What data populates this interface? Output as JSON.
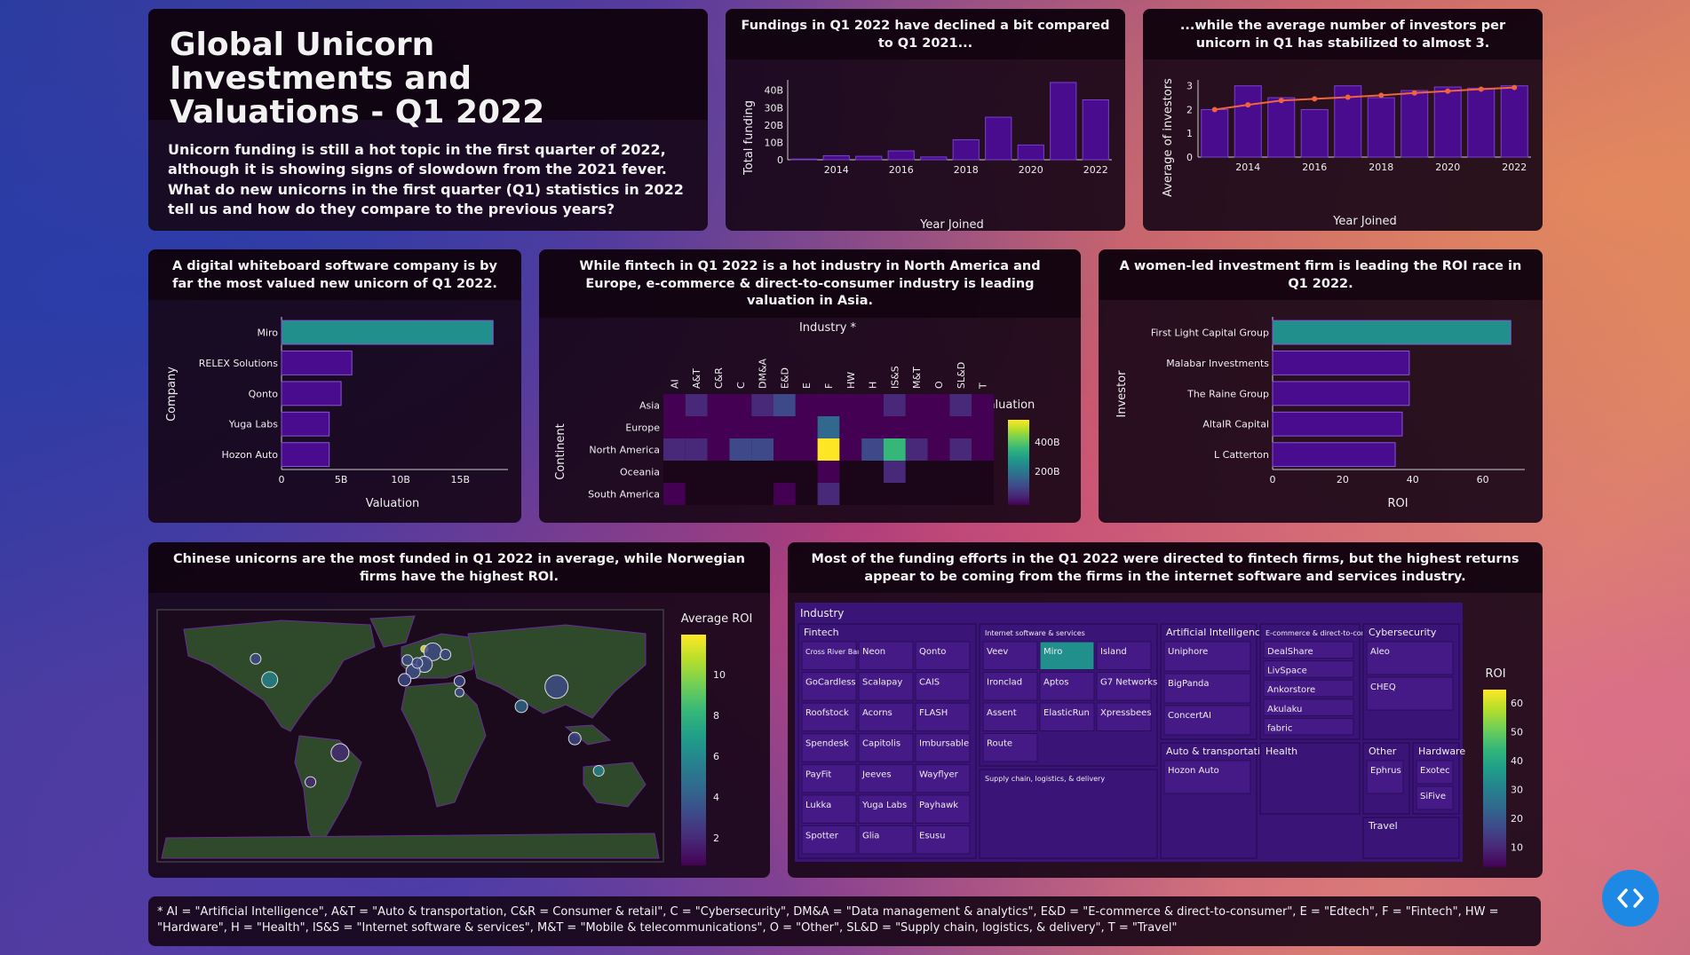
{
  "header": {
    "title": "Global Unicorn Investments and Valuations - Q1 2022",
    "intro": "Unicorn funding is still a hot topic in the first quarter of 2022, although it is showing signs of slowdown from the 2021 fever. What do new unicorns in the first quarter (Q1) statistics in 2022 tell us and how do they compare to the previous years?"
  },
  "cards": {
    "funding_title": "Fundings in Q1 2022 have declined a bit compared to Q1 2021...",
    "investors_title": "...while the average number of investors per unicorn in Q1 has stabilized to almost 3.",
    "company_title": "A digital whiteboard software company is by far the most valued new unicorn of Q1 2022.",
    "heatmap_title": "While fintech in Q1 2022 is a hot industry in North America and Europe, e-commerce & direct-to-consumer industry is leading valuation in Asia.",
    "roi_title": "A women-led investment firm is leading the ROI race in Q1 2022.",
    "map_title": "Chinese unicorns are the most funded in Q1 2022 in average, while Norwegian firms have the highest ROI.",
    "treemap_title": "Most of the funding efforts in the Q1 2022 were directed to fintech firms, but the highest returns appear to be coming from the firms in the internet software and services industry."
  },
  "footnote": "* AI = \"Artificial Intelligence\", A&T = \"Auto & transportation, C&R = Consumer & retail\", C = \"Cybersecurity\", DM&A = \"Data management & analytics\", E&D = \"E-commerce & direct-to-consumer\", E = \"Edtech\", F = \"Fintech\", HW = \"Hardware\", H = \"Health\", IS&S = \"Internet software & services\", M&T = \"Mobile & telecommunications\", O = \"Other\", SL&D = \"Supply chain, logistics, & delivery\", T = \"Travel\"",
  "colors": {
    "bar": "#4a0c8f",
    "highlight": "#21908d",
    "line": "#f0643c",
    "card": "#1a0618"
  },
  "chart_data": [
    {
      "id": "funding",
      "type": "bar",
      "title": "Fundings in Q1 2022 have declined a bit compared to Q1 2021...",
      "xlabel": "Year Joined",
      "ylabel": "Total funding",
      "categories": [
        2013,
        2014,
        2015,
        2016,
        2017,
        2018,
        2019,
        2020,
        2021,
        2022
      ],
      "values": [
        0.4,
        2.3,
        2.0,
        5.1,
        1.6,
        11.5,
        24.5,
        8.5,
        44.5,
        34.5
      ],
      "x_ticks": [
        "2014",
        "2016",
        "2018",
        "2020",
        "2022"
      ],
      "y_ticks": [
        "0",
        "10B",
        "20B",
        "30B",
        "40B"
      ],
      "ylim": [
        0,
        46
      ]
    },
    {
      "id": "investors",
      "type": "bar+line",
      "title": "...while the average number of investors per unicorn in Q1 has stabilized to almost 3.",
      "xlabel": "Year Joined",
      "ylabel": "Average of investors",
      "categories": [
        2013,
        2014,
        2015,
        2016,
        2017,
        2018,
        2019,
        2020,
        2021,
        2022
      ],
      "values": [
        2.0,
        3.0,
        2.5,
        2.0,
        3.0,
        2.5,
        2.8,
        2.95,
        2.9,
        3.0
      ],
      "trend": [
        2.0,
        2.2,
        2.38,
        2.45,
        2.52,
        2.6,
        2.7,
        2.78,
        2.86,
        2.93
      ],
      "x_ticks": [
        "2014",
        "2016",
        "2018",
        "2020",
        "2022"
      ],
      "y_ticks": [
        "0",
        "1",
        "2",
        "3"
      ],
      "ylim": [
        0,
        3.25
      ]
    },
    {
      "id": "company",
      "type": "bar-horizontal",
      "title": "A digital whiteboard software company is by far the most valued new unicorn of Q1 2022.",
      "xlabel": "Valuation",
      "ylabel": "Company",
      "categories": [
        "Miro",
        "RELEX Solutions",
        "Qonto",
        "Yuga Labs",
        "Hozon Auto"
      ],
      "values": [
        17.75,
        5.9,
        5.0,
        4.0,
        4.0
      ],
      "x_ticks": [
        "0",
        "5B",
        "10B",
        "15B"
      ],
      "xlim": [
        0,
        19
      ]
    },
    {
      "id": "heatmap",
      "type": "heatmap",
      "title": "Industry *",
      "ylabel": "Continent",
      "x": [
        "AI",
        "A&T",
        "C&R",
        "C",
        "DM&A",
        "E&D",
        "E",
        "F",
        "HW",
        "H",
        "IS&S",
        "M&T",
        "O",
        "SL&D",
        "T"
      ],
      "y": [
        "Asia",
        "Europe",
        "North America",
        "Oceania",
        "South America"
      ],
      "z": [
        [
          35,
          55,
          40,
          25,
          60,
          110,
          25,
          40,
          20,
          30,
          45,
          30,
          35,
          45,
          25
        ],
        [
          15,
          30,
          10,
          10,
          35,
          20,
          10,
          160,
          10,
          10,
          35,
          15,
          20,
          20,
          15
        ],
        [
          50,
          60,
          40,
          120,
          130,
          40,
          30,
          440,
          30,
          110,
          280,
          60,
          40,
          50,
          40
        ],
        [
          0,
          0,
          0,
          0,
          0,
          0,
          0,
          25,
          0,
          0,
          70,
          0,
          0,
          0,
          0
        ],
        [
          30,
          0,
          0,
          0,
          0,
          35,
          0,
          55,
          0,
          0,
          0,
          0,
          0,
          0,
          0
        ]
      ],
      "colorbar_title": "Valuation",
      "colorbar_ticks": [
        "400B",
        "200B"
      ]
    },
    {
      "id": "roi",
      "type": "bar-horizontal",
      "title": "A women-led investment firm is leading the ROI race in Q1 2022.",
      "xlabel": "ROI",
      "ylabel": "Investor",
      "categories": [
        "First Light Capital Group",
        "Malabar Investments",
        "The Raine Group",
        "AltaIR Capital",
        "L Catterton"
      ],
      "values": [
        68,
        39,
        39,
        37,
        35
      ],
      "x_ticks": [
        "0",
        "20",
        "40",
        "60"
      ],
      "xlim": [
        0,
        72
      ]
    },
    {
      "id": "map",
      "type": "scatter-geo",
      "title": "Chinese unicorns are the most funded in Q1 2022 in average, while Norwegian firms have the highest ROI.",
      "colorbar_title": "Average ROI",
      "colorbar_ticks": [
        "10",
        "8",
        "6",
        "4",
        "2"
      ],
      "points": [
        {
          "country": "United States",
          "lon": -100,
          "lat": 40,
          "roi": 5,
          "size": 9
        },
        {
          "country": "Canada",
          "lon": -110,
          "lat": 55,
          "roi": 3.5,
          "size": 6
        },
        {
          "country": "Brazil",
          "lon": -50,
          "lat": -12,
          "roi": 2.5,
          "size": 10
        },
        {
          "country": "Chile",
          "lon": -71,
          "lat": -33,
          "roi": 2,
          "size": 6
        },
        {
          "country": "United Kingdom",
          "lon": -2,
          "lat": 54,
          "roi": 3,
          "size": 6
        },
        {
          "country": "Norway",
          "lon": 10,
          "lat": 62,
          "roi": 11,
          "size": 4
        },
        {
          "country": "Sweden",
          "lon": 16,
          "lat": 60,
          "roi": 3,
          "size": 10
        },
        {
          "country": "Germany",
          "lon": 10,
          "lat": 51,
          "roi": 3,
          "size": 9
        },
        {
          "country": "France",
          "lon": 2,
          "lat": 46,
          "roi": 3,
          "size": 8
        },
        {
          "country": "Netherlands",
          "lon": 5,
          "lat": 52,
          "roi": 3,
          "size": 6
        },
        {
          "country": "Spain",
          "lon": -4,
          "lat": 40,
          "roi": 3,
          "size": 7
        },
        {
          "country": "Estonia",
          "lon": 25,
          "lat": 58,
          "roi": 3,
          "size": 6
        },
        {
          "country": "Turkey",
          "lon": 35,
          "lat": 39,
          "roi": 3,
          "size": 6
        },
        {
          "country": "Israel",
          "lon": 35,
          "lat": 31,
          "roi": 3,
          "size": 5
        },
        {
          "country": "China",
          "lon": 104,
          "lat": 35,
          "roi": 3,
          "size": 13
        },
        {
          "country": "India",
          "lon": 79,
          "lat": 21,
          "roi": 4,
          "size": 7
        },
        {
          "country": "Indonesia",
          "lon": 117,
          "lat": -2,
          "roi": 3,
          "size": 7
        },
        {
          "country": "Australia",
          "lon": 134,
          "lat": -25,
          "roi": 5,
          "size": 6
        }
      ]
    },
    {
      "id": "treemap",
      "type": "treemap",
      "title": "Industry",
      "colorbar_title": "ROI",
      "colorbar_ticks": [
        "60",
        "50",
        "40",
        "30",
        "20",
        "10"
      ],
      "groups": [
        {
          "name": "Fintech",
          "items": [
            "Cross River Bank",
            "Neon",
            "Qonto",
            "GoCardless",
            "Scalapay",
            "CAIS",
            "Roofstock",
            "Acorns",
            "FLASH",
            "Spendesk",
            "Capitolis",
            "Imbursable",
            "PayFit",
            "Jeeves",
            "Wayflyer",
            "Lukka",
            "Yuga Labs",
            "Payhawk",
            "Spotter",
            "Glia",
            "Esusu"
          ]
        },
        {
          "name": "Internet software & services",
          "items": [
            "Veev",
            "Miro",
            "Island",
            "Ironclad",
            "Aptos",
            "G7 Networks",
            "Assent",
            "ElasticRun",
            "Xpressbees",
            "Route"
          ]
        },
        {
          "name": "Artificial Intelligence",
          "items": [
            "Uniphore",
            "BigPanda",
            "ConcertAI"
          ]
        },
        {
          "name": "E-commerce & direct-to-consumer",
          "items": [
            "DealShare",
            "LivSpace",
            "Ankorstore",
            "Akulaku",
            "fabric"
          ]
        },
        {
          "name": "Cybersecurity",
          "items": [
            "Aleo",
            "CHEQ"
          ]
        },
        {
          "name": "Supply chain, logistics, & delivery",
          "items": []
        },
        {
          "name": "Auto & transportation",
          "items": [
            "Hozon Auto"
          ]
        },
        {
          "name": "Health",
          "items": []
        },
        {
          "name": "Other",
          "items": [
            "Ephrus"
          ]
        },
        {
          "name": "Hardware",
          "items": [
            "Exotec",
            "SiFive"
          ]
        },
        {
          "name": "Travel",
          "items": []
        }
      ]
    }
  ]
}
